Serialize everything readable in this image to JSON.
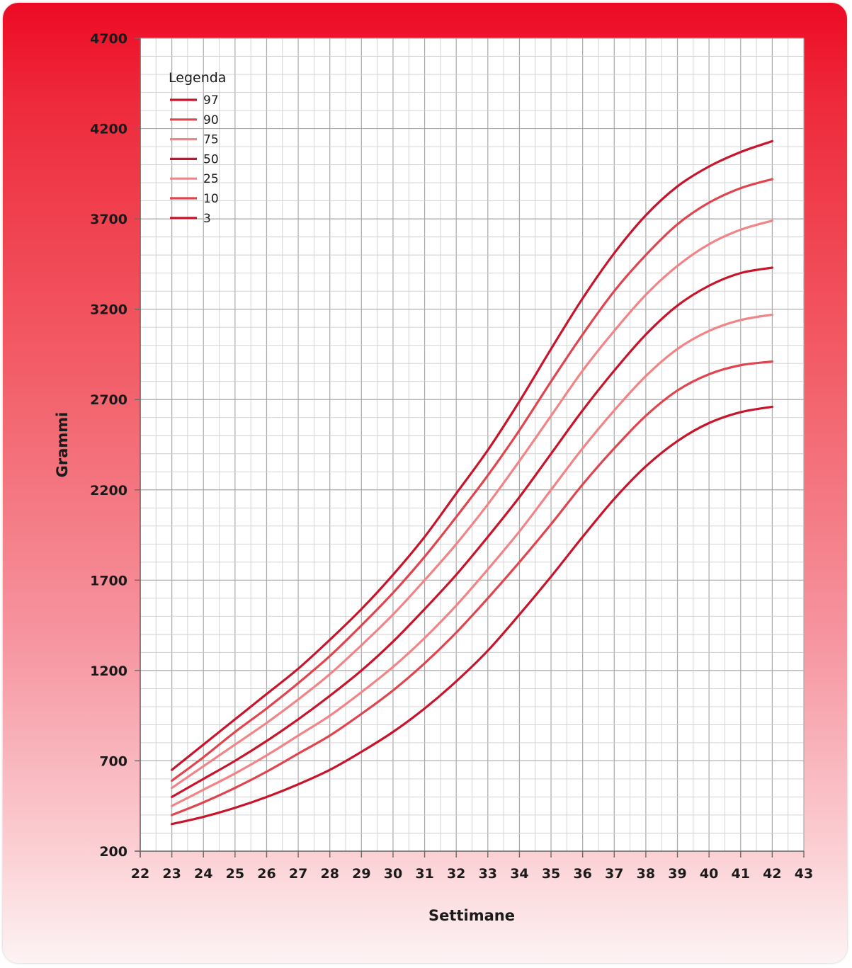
{
  "chart_data": {
    "type": "line",
    "xlabel": "Settimane",
    "ylabel": "Grammi",
    "xlim": [
      22,
      43
    ],
    "ylim": [
      200,
      4700
    ],
    "xticks": [
      22,
      23,
      24,
      25,
      26,
      27,
      28,
      29,
      30,
      31,
      32,
      33,
      34,
      35,
      36,
      37,
      38,
      39,
      40,
      41,
      42,
      43
    ],
    "yticks": [
      200,
      700,
      1200,
      1700,
      2200,
      2700,
      3200,
      3700,
      4200,
      4700
    ],
    "x_minor_step": 0.5,
    "y_minor_step": 100,
    "grid": true,
    "legend": {
      "title": "Legenda",
      "position": "top-left"
    },
    "x": [
      23,
      24,
      25,
      26,
      27,
      28,
      29,
      30,
      31,
      32,
      33,
      34,
      35,
      36,
      37,
      38,
      39,
      40,
      41,
      42
    ],
    "series": [
      {
        "name": "97",
        "color": "#c8142b",
        "values": [
          650,
          790,
          930,
          1070,
          1210,
          1370,
          1540,
          1730,
          1940,
          2180,
          2420,
          2690,
          2980,
          3260,
          3510,
          3720,
          3880,
          3990,
          4070,
          4130
        ]
      },
      {
        "name": "90",
        "color": "#e0454f",
        "values": [
          590,
          720,
          860,
          990,
          1130,
          1280,
          1450,
          1630,
          1830,
          2050,
          2280,
          2530,
          2800,
          3060,
          3300,
          3500,
          3670,
          3790,
          3870,
          3920
        ]
      },
      {
        "name": "75",
        "color": "#f08486",
        "values": [
          550,
          670,
          790,
          910,
          1040,
          1180,
          1340,
          1510,
          1700,
          1900,
          2120,
          2360,
          2610,
          2860,
          3080,
          3280,
          3440,
          3560,
          3640,
          3690
        ]
      },
      {
        "name": "50",
        "color": "#c8142b",
        "values": [
          500,
          600,
          700,
          810,
          930,
          1060,
          1200,
          1360,
          1540,
          1730,
          1940,
          2160,
          2400,
          2640,
          2860,
          3060,
          3220,
          3330,
          3400,
          3430
        ]
      },
      {
        "name": "25",
        "color": "#f08486",
        "values": [
          450,
          540,
          630,
          730,
          840,
          950,
          1080,
          1220,
          1380,
          1560,
          1760,
          1970,
          2200,
          2430,
          2640,
          2830,
          2980,
          3080,
          3140,
          3170
        ]
      },
      {
        "name": "10",
        "color": "#e0454f",
        "values": [
          400,
          470,
          550,
          640,
          740,
          840,
          960,
          1090,
          1240,
          1410,
          1600,
          1800,
          2010,
          2230,
          2430,
          2610,
          2750,
          2840,
          2890,
          2910
        ]
      },
      {
        "name": "3",
        "color": "#c8142b",
        "values": [
          350,
          390,
          440,
          500,
          570,
          650,
          750,
          860,
          990,
          1140,
          1310,
          1510,
          1720,
          1940,
          2150,
          2330,
          2470,
          2570,
          2630,
          2660
        ]
      }
    ]
  }
}
